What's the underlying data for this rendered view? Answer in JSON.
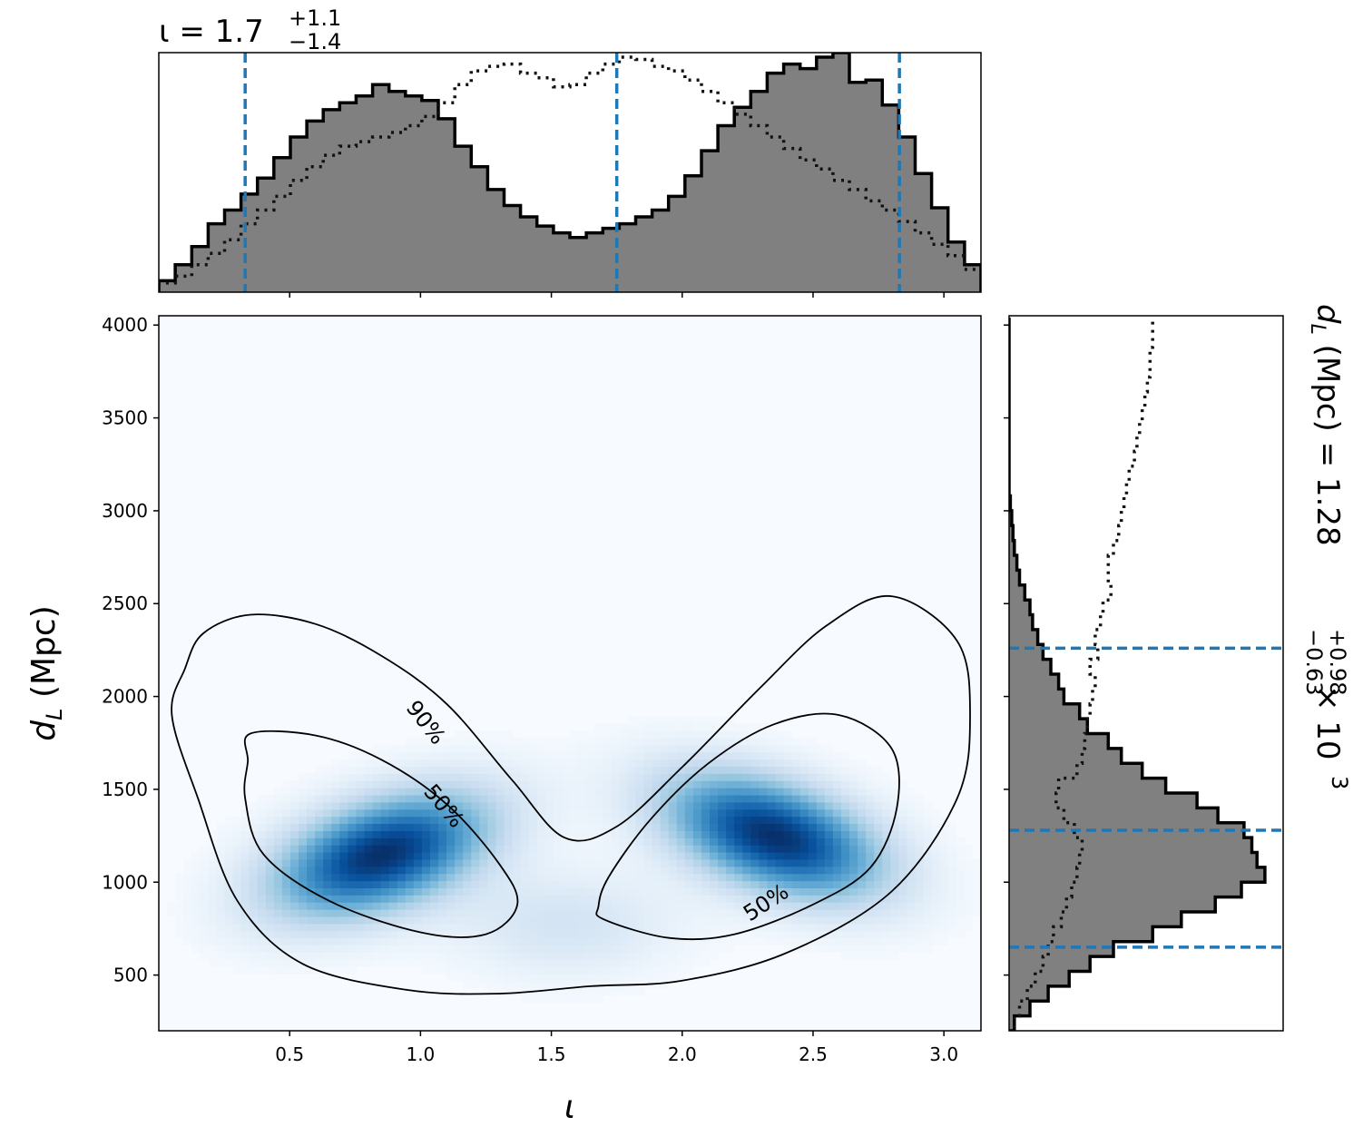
{
  "chart_data": [
    {
      "panel": "top-marginal",
      "type": "histogram",
      "title": {
        "symbol": "ι",
        "equals": " = ",
        "median": "1.7",
        "plus": "+1.1",
        "minus": "−1.4"
      },
      "xlim": [
        0,
        3.1416
      ],
      "ylim": [
        0,
        1.05
      ],
      "bins": [
        0.0,
        0.0628,
        0.1257,
        0.1885,
        0.2513,
        0.3142,
        0.377,
        0.4398,
        0.5027,
        0.5655,
        0.6283,
        0.6912,
        0.754,
        0.8168,
        0.8796,
        0.9425,
        1.0053,
        1.0681,
        1.131,
        1.1938,
        1.2566,
        1.3195,
        1.3823,
        1.4451,
        1.508,
        1.5708,
        1.6336,
        1.6965,
        1.7593,
        1.8221,
        1.885,
        1.9478,
        2.0106,
        2.0735,
        2.1363,
        2.1991,
        2.2619,
        2.3248,
        2.3876,
        2.4504,
        2.5133,
        2.5761,
        2.6389,
        2.7018,
        2.7646,
        2.8274,
        2.8903,
        2.9531,
        3.0159,
        3.0788,
        3.1416
      ],
      "series": [
        {
          "values": [
            0.05,
            0.12,
            0.2,
            0.3,
            0.36,
            0.43,
            0.5,
            0.59,
            0.68,
            0.75,
            0.8,
            0.83,
            0.86,
            0.91,
            0.88,
            0.86,
            0.84,
            0.76,
            0.64,
            0.55,
            0.45,
            0.38,
            0.33,
            0.29,
            0.26,
            0.24,
            0.26,
            0.28,
            0.3,
            0.33,
            0.36,
            0.42,
            0.51,
            0.62,
            0.73,
            0.81,
            0.88,
            0.96,
            1.0,
            0.98,
            1.03,
            1.05,
            0.92,
            0.93,
            0.82,
            0.68,
            0.52,
            0.37,
            0.22,
            0.12
          ],
          "style": "filled-step"
        },
        {
          "values": [
            0.04,
            0.07,
            0.12,
            0.17,
            0.23,
            0.3,
            0.36,
            0.42,
            0.49,
            0.55,
            0.6,
            0.64,
            0.66,
            0.68,
            0.7,
            0.73,
            0.77,
            0.83,
            0.91,
            0.97,
            0.99,
            1.0,
            0.96,
            0.94,
            0.9,
            0.91,
            0.96,
            1.0,
            1.03,
            1.02,
            0.99,
            0.97,
            0.93,
            0.88,
            0.83,
            0.78,
            0.73,
            0.68,
            0.63,
            0.58,
            0.54,
            0.49,
            0.45,
            0.4,
            0.36,
            0.31,
            0.26,
            0.21,
            0.16,
            0.1
          ],
          "style": "dotted-step"
        }
      ],
      "vlines": [
        0.33,
        1.75,
        2.83
      ]
    },
    {
      "panel": "main",
      "type": "heatmap",
      "xlabel": "ι",
      "ylabel_main": "d",
      "ylabel_sub": "L",
      "ylabel_rest": " (Mpc)",
      "xlim": [
        0,
        3.1416
      ],
      "ylim": [
        200,
        4050
      ],
      "xticks": [
        {
          "v": 0.5,
          "label": "0.5"
        },
        {
          "v": 1.0,
          "label": "1.0"
        },
        {
          "v": 1.5,
          "label": "1.5"
        },
        {
          "v": 2.0,
          "label": "2.0"
        },
        {
          "v": 2.5,
          "label": "2.5"
        },
        {
          "v": 3.0,
          "label": "3.0"
        }
      ],
      "yticks": [
        {
          "v": 500,
          "label": "500"
        },
        {
          "v": 1000,
          "label": "1000"
        },
        {
          "v": 1500,
          "label": "1500"
        },
        {
          "v": 2000,
          "label": "2000"
        },
        {
          "v": 2500,
          "label": "2500"
        },
        {
          "v": 3000,
          "label": "3000"
        },
        {
          "v": 3500,
          "label": "3500"
        },
        {
          "v": 4000,
          "label": "4000"
        }
      ],
      "density_peaks": [
        {
          "x": 0.85,
          "y": 1150,
          "amp": 1.0
        },
        {
          "x": 2.35,
          "y": 1250,
          "amp": 1.0
        }
      ],
      "contours": [
        {
          "level": "90%",
          "points": [
            [
              0.17,
              2340
            ],
            [
              0.35,
              2440
            ],
            [
              0.6,
              2390
            ],
            [
              0.85,
              2220
            ],
            [
              1.1,
              1960
            ],
            [
              1.35,
              1550
            ],
            [
              1.55,
              1240
            ],
            [
              1.75,
              1300
            ],
            [
              2.0,
              1620
            ],
            [
              2.3,
              2050
            ],
            [
              2.55,
              2380
            ],
            [
              2.8,
              2540
            ],
            [
              3.05,
              2300
            ],
            [
              3.1,
              1900
            ],
            [
              3.05,
              1450
            ],
            [
              2.8,
              950
            ],
            [
              2.4,
              620
            ],
            [
              2.0,
              470
            ],
            [
              1.65,
              440
            ],
            [
              1.3,
              400
            ],
            [
              0.95,
              420
            ],
            [
              0.55,
              560
            ],
            [
              0.3,
              900
            ],
            [
              0.15,
              1450
            ],
            [
              0.05,
              1900
            ],
            [
              0.1,
              2150
            ]
          ]
        },
        {
          "level": "50%",
          "points": [
            [
              0.35,
              1800
            ],
            [
              0.6,
              1790
            ],
            [
              0.85,
              1660
            ],
            [
              1.1,
              1420
            ],
            [
              1.3,
              1100
            ],
            [
              1.37,
              880
            ],
            [
              1.25,
              720
            ],
            [
              1.0,
              730
            ],
            [
              0.65,
              900
            ],
            [
              0.4,
              1150
            ],
            [
              0.33,
              1450
            ],
            [
              0.34,
              1650
            ]
          ]
        },
        {
          "level": "50%",
          "points": [
            [
              1.7,
              800
            ],
            [
              1.95,
              700
            ],
            [
              2.2,
              720
            ],
            [
              2.5,
              880
            ],
            [
              2.72,
              1080
            ],
            [
              2.82,
              1400
            ],
            [
              2.8,
              1720
            ],
            [
              2.6,
              1900
            ],
            [
              2.35,
              1850
            ],
            [
              2.1,
              1640
            ],
            [
              1.88,
              1340
            ],
            [
              1.72,
              1030
            ],
            [
              1.68,
              870
            ]
          ]
        }
      ],
      "contour_labels": [
        {
          "text": "90%",
          "x": 1.02,
          "y": 1860,
          "rot": 52
        },
        {
          "text": "50%",
          "x": 1.09,
          "y": 1410,
          "rot": 50
        },
        {
          "text": "50%",
          "x": 2.32,
          "y": 890,
          "rot": -33
        }
      ]
    },
    {
      "panel": "right-marginal",
      "type": "histogram",
      "title": {
        "symbol": "d",
        "sub": "L",
        "rest": " (Mpc) = ",
        "median": "1.28",
        "plus": "+0.98",
        "minus": "−0.63",
        "times": " × 10",
        "exp": "3"
      },
      "ylim": [
        200,
        4050
      ],
      "xlim": [
        0,
        1.05
      ],
      "bins": [
        200,
        280,
        360,
        440,
        520,
        600,
        680,
        760,
        840,
        920,
        1000,
        1080,
        1160,
        1240,
        1320,
        1400,
        1480,
        1560,
        1640,
        1720,
        1800,
        1880,
        1960,
        2040,
        2120,
        2200,
        2280,
        2360,
        2440,
        2520,
        2600,
        2680,
        2760,
        2840,
        2920,
        3000,
        3080,
        3160,
        3240,
        3320,
        3400,
        3480,
        3560,
        3640,
        3720,
        3800,
        3880,
        3960,
        4040
      ],
      "series": [
        {
          "values": [
            0.02,
            0.08,
            0.15,
            0.23,
            0.31,
            0.4,
            0.55,
            0.66,
            0.79,
            0.89,
            0.98,
            0.95,
            0.93,
            0.9,
            0.8,
            0.72,
            0.6,
            0.51,
            0.43,
            0.38,
            0.3,
            0.27,
            0.21,
            0.19,
            0.16,
            0.13,
            0.11,
            0.09,
            0.08,
            0.06,
            0.04,
            0.03,
            0.02,
            0.015,
            0.01,
            0.005,
            0.0,
            0.0,
            0.0,
            0.0,
            0.0,
            0.0,
            0.0,
            0.0,
            0.0,
            0.0,
            0.0,
            0.0
          ],
          "style": "filled-step"
        },
        {
          "values": [
            0.02,
            0.04,
            0.07,
            0.1,
            0.13,
            0.15,
            0.17,
            0.2,
            0.22,
            0.24,
            0.26,
            0.27,
            0.28,
            0.25,
            0.21,
            0.18,
            0.19,
            0.26,
            0.28,
            0.29,
            0.3,
            0.31,
            0.32,
            0.33,
            0.31,
            0.34,
            0.33,
            0.35,
            0.36,
            0.39,
            0.38,
            0.38,
            0.4,
            0.42,
            0.43,
            0.44,
            0.45,
            0.46,
            0.48,
            0.49,
            0.5,
            0.51,
            0.52,
            0.53,
            0.54,
            0.54,
            0.55,
            0.55
          ],
          "style": "dotted-step"
        }
      ],
      "hlines": [
        650,
        1280,
        2260
      ]
    }
  ]
}
